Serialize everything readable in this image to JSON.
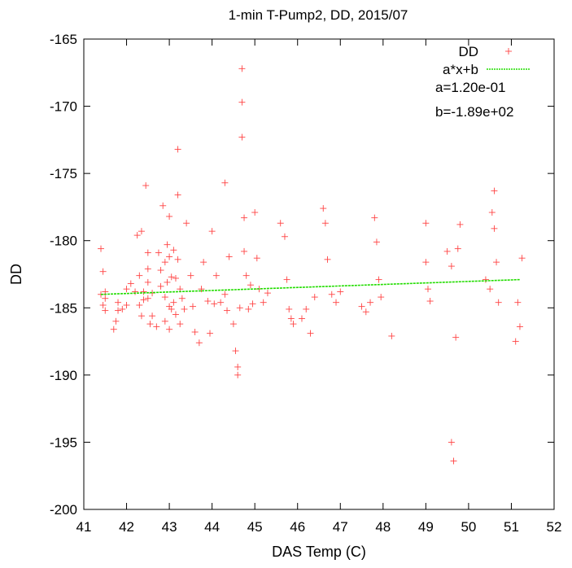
{
  "chart_data": {
    "type": "scatter",
    "title": "1-min T-Pump2, DD, 2015/07",
    "xlabel": "DAS Temp (C)",
    "ylabel": "DD",
    "xlim": [
      41,
      52
    ],
    "ylim": [
      -200,
      -165
    ],
    "xticks": [
      "41",
      "42",
      "43",
      "44",
      "45",
      "46",
      "47",
      "48",
      "49",
      "50",
      "51",
      "52"
    ],
    "yticks": [
      "-165",
      "-170",
      "-175",
      "-180",
      "-185",
      "-190",
      "-195",
      "-200"
    ],
    "grid": false,
    "legend_position": "top-right",
    "colors": {
      "points": "#ff4444",
      "fit": "#22dd00"
    },
    "series": [
      {
        "name": "DD",
        "kind": "points",
        "x": [
          41.4,
          41.4,
          41.45,
          41.45,
          41.5,
          41.5,
          41.5,
          41.7,
          41.75,
          41.8,
          41.8,
          41.9,
          42.0,
          42.0,
          42.1,
          42.2,
          42.25,
          42.3,
          42.3,
          42.35,
          42.35,
          42.4,
          42.4,
          42.45,
          42.5,
          42.5,
          42.5,
          42.5,
          42.55,
          42.6,
          42.6,
          42.7,
          42.75,
          42.8,
          42.8,
          42.85,
          42.9,
          42.9,
          42.9,
          42.95,
          42.95,
          43.0,
          43.0,
          43.0,
          43.0,
          43.05,
          43.05,
          43.1,
          43.1,
          43.15,
          43.15,
          43.2,
          43.2,
          43.2,
          43.25,
          43.25,
          43.3,
          43.35,
          43.4,
          43.5,
          43.55,
          43.6,
          43.7,
          43.75,
          43.8,
          43.9,
          43.95,
          44.0,
          44.05,
          44.1,
          44.2,
          44.3,
          44.3,
          44.35,
          44.4,
          44.5,
          44.55,
          44.6,
          44.6,
          44.65,
          44.7,
          44.7,
          44.7,
          44.75,
          44.75,
          44.8,
          44.85,
          44.9,
          44.95,
          45.0,
          45.05,
          45.1,
          45.2,
          45.3,
          45.6,
          45.7,
          45.75,
          45.8,
          45.85,
          45.9,
          46.1,
          46.2,
          46.3,
          46.4,
          46.6,
          46.65,
          46.7,
          46.8,
          46.9,
          47.0,
          47.5,
          47.6,
          47.7,
          47.8,
          47.85,
          47.9,
          47.95,
          48.2,
          49.0,
          49.0,
          49.05,
          49.1,
          49.5,
          49.6,
          49.6,
          49.65,
          49.7,
          49.75,
          49.8,
          50.4,
          50.5,
          50.55,
          50.6,
          50.6,
          50.65,
          50.7,
          51.1,
          51.15,
          51.2,
          51.25
        ],
        "y": [
          -180.6,
          -184.0,
          -182.3,
          -184.8,
          -185.2,
          -184.3,
          -183.8,
          -186.6,
          -186.0,
          -185.2,
          -184.6,
          -185.1,
          -183.6,
          -184.8,
          -183.2,
          -183.8,
          -179.6,
          -182.6,
          -184.8,
          -185.6,
          -179.3,
          -183.8,
          -184.4,
          -175.9,
          -180.9,
          -182.1,
          -183.1,
          -184.3,
          -186.2,
          -185.6,
          -183.9,
          -186.4,
          -180.9,
          -182.2,
          -183.4,
          -177.4,
          -181.6,
          -184.2,
          -186.0,
          -180.3,
          -183.1,
          -178.2,
          -181.2,
          -184.9,
          -186.6,
          -182.7,
          -185.1,
          -180.7,
          -184.6,
          -182.8,
          -185.5,
          -173.2,
          -176.6,
          -181.4,
          -183.6,
          -186.2,
          -184.3,
          -185.1,
          -178.7,
          -182.6,
          -184.9,
          -186.8,
          -187.6,
          -183.6,
          -181.6,
          -184.5,
          -186.9,
          -179.3,
          -184.7,
          -182.6,
          -184.6,
          -175.7,
          -184.0,
          -185.2,
          -181.2,
          -186.2,
          -188.2,
          -189.4,
          -190.0,
          -185.0,
          -167.2,
          -169.7,
          -172.3,
          -178.3,
          -180.8,
          -182.6,
          -185.1,
          -183.3,
          -184.7,
          -177.9,
          -181.3,
          -183.6,
          -184.6,
          -183.9,
          -178.7,
          -179.7,
          -182.9,
          -185.1,
          -185.8,
          -186.2,
          -185.8,
          -185.1,
          -186.9,
          -184.2,
          -177.6,
          -178.7,
          -181.4,
          -184.0,
          -184.6,
          -183.8,
          -184.9,
          -185.3,
          -184.6,
          -178.3,
          -180.1,
          -182.9,
          -184.2,
          -187.1,
          -178.7,
          -181.6,
          -183.6,
          -184.5,
          -180.8,
          -181.9,
          -195.0,
          -196.4,
          -187.2,
          -180.6,
          -178.8,
          -182.9,
          -183.6,
          -177.9,
          -176.3,
          -179.1,
          -181.6,
          -184.6,
          -187.5,
          -184.6,
          -186.4,
          -181.3
        ]
      },
      {
        "name": "a*x+b",
        "kind": "line",
        "x": [
          41.4,
          51.2
        ],
        "y": [
          -184.0,
          -182.9
        ]
      }
    ],
    "annotations": [
      "a=1.20e-01",
      "b=-1.89e+02"
    ]
  }
}
